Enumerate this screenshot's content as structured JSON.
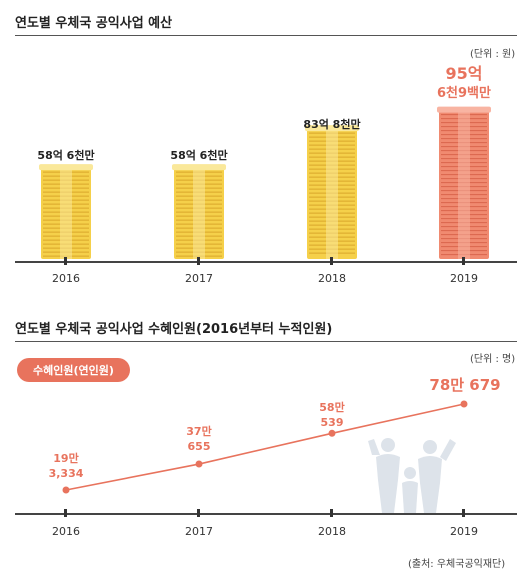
{
  "budget": {
    "title": "연도별 우체국 공익사업 예산",
    "unit": "(단위 : 원)"
  },
  "beneficiaries": {
    "title": "연도별 우체국 공익사업 수혜인원(2016년부터 누적인원)",
    "unit": "(단위 : 명)",
    "pill": "수혜인원(연인원)"
  },
  "source": "(출처: 우체국공익재단)",
  "colors": {
    "accent": "#e8735d",
    "gold": "#f2c94c",
    "gold_dark": "#e0a92a"
  },
  "chart_data": [
    {
      "type": "bar",
      "title": "연도별 우체국 공익사업 예산",
      "categories": [
        "2016",
        "2017",
        "2018",
        "2019"
      ],
      "values": [
        5860000000,
        5860000000,
        8380000000,
        9569000000
      ],
      "labels": [
        "58억 6천만",
        "58억 6천만",
        "83억 8천만",
        [
          "95억",
          "6천9백만"
        ]
      ],
      "ylabel": "(단위 : 원)",
      "highlight_index": 3
    },
    {
      "type": "line",
      "title": "연도별 우체국 공익사업 수혜인원(2016년부터 누적인원)",
      "categories": [
        "2016",
        "2017",
        "2018",
        "2019"
      ],
      "values": [
        193334,
        370655,
        580539,
        780679
      ],
      "labels": [
        [
          "19만",
          "3,334"
        ],
        [
          "37만",
          "655"
        ],
        [
          "58만",
          "539"
        ],
        "78만 679"
      ],
      "ylabel": "(단위 : 명)"
    }
  ]
}
